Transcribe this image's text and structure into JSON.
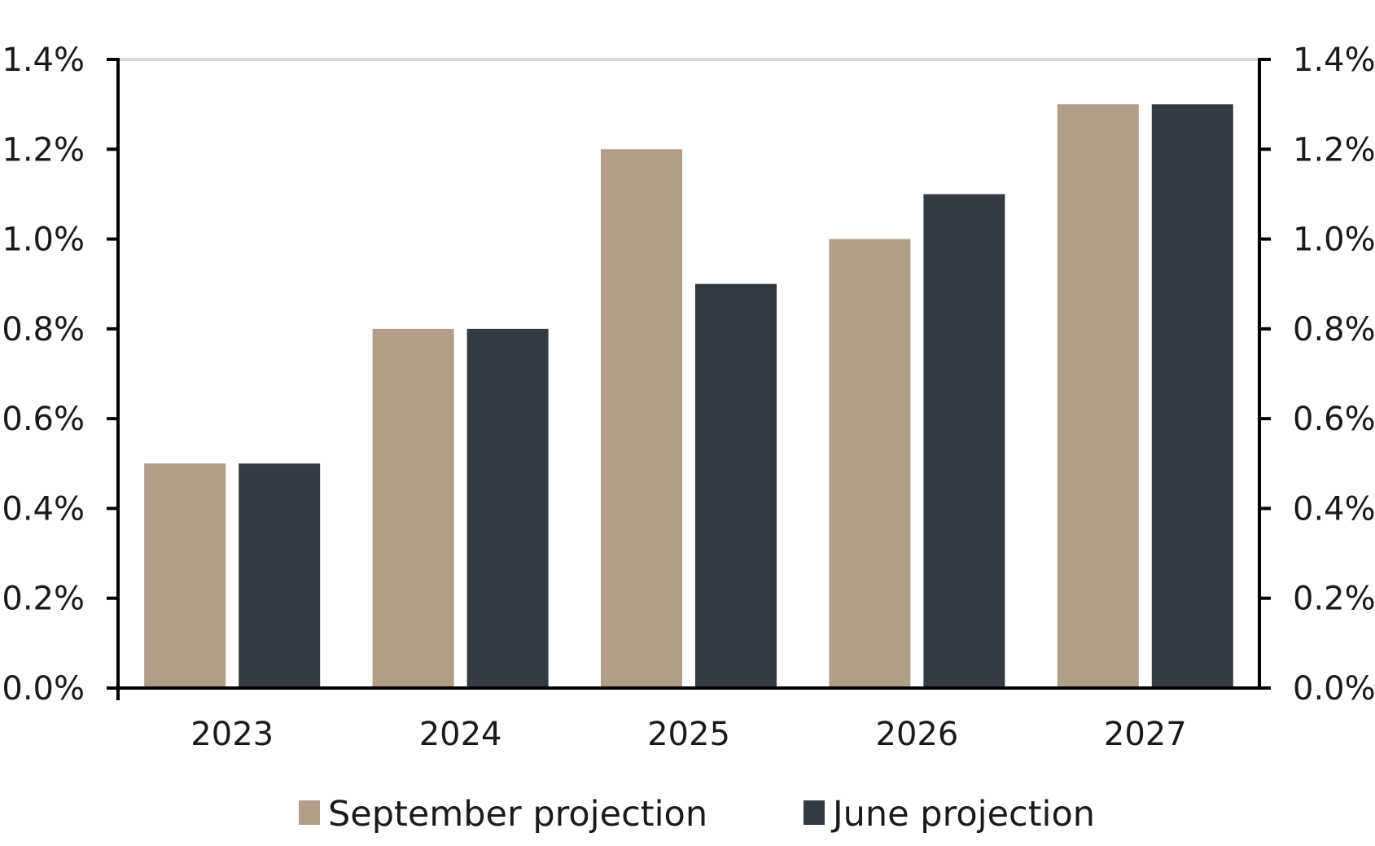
{
  "chart_data": {
    "type": "bar",
    "title": "",
    "xlabel": "",
    "ylabel": "",
    "categories": [
      "2023",
      "2024",
      "2025",
      "2026",
      "2027"
    ],
    "series": [
      {
        "name": "September projection",
        "values": [
          0.5,
          0.8,
          1.2,
          1.0,
          1.3
        ],
        "color": "#b09e89"
      },
      {
        "name": "June projection",
        "values": [
          0.5,
          0.8,
          0.9,
          1.1,
          1.3
        ],
        "color": "#343a41"
      }
    ],
    "ylim": [
      0,
      1.4
    ],
    "y_ticks": [
      "0.0%",
      "0.2%",
      "0.4%",
      "0.6%",
      "0.8%",
      "1.0%",
      "1.2%",
      "1.4%"
    ],
    "y_tick_values": [
      0,
      0.2,
      0.4,
      0.6,
      0.8,
      1.0,
      1.2,
      1.4
    ],
    "secondary_y_axis": true,
    "grid": false,
    "legend_position": "bottom"
  }
}
